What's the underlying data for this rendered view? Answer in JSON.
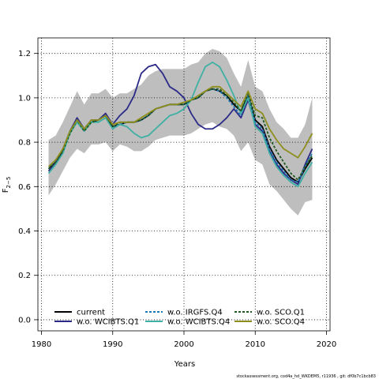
{
  "chart_data": {
    "type": "line",
    "xlabel": "Years",
    "ylabel": "F",
    "ylabel_sub": "2−5",
    "xlim": [
      1979.5,
      2020.5
    ],
    "ylim": [
      -0.05,
      1.27
    ],
    "xticks": [
      1980,
      1990,
      2000,
      2010,
      2020
    ],
    "yticks": [
      0.0,
      0.2,
      0.4,
      0.6,
      0.8,
      1.0,
      1.2
    ],
    "ytick_labels": [
      "0.0",
      "0.2",
      "0.4",
      "0.6",
      "0.8",
      "1.0",
      "1.2"
    ],
    "grid": true,
    "legend_position": "bottom-left",
    "confidence_band": {
      "color": "#bebebe",
      "x": [
        1981,
        1982,
        1983,
        1984,
        1985,
        1986,
        1987,
        1988,
        1989,
        1990,
        1991,
        1992,
        1993,
        1994,
        1995,
        1996,
        1997,
        1998,
        1999,
        2000,
        2001,
        2002,
        2003,
        2004,
        2005,
        2006,
        2007,
        2008,
        2009,
        2010,
        2011,
        2012,
        2013,
        2014,
        2015,
        2016,
        2017,
        2018
      ],
      "lower": [
        0.56,
        0.61,
        0.67,
        0.73,
        0.77,
        0.75,
        0.79,
        0.79,
        0.8,
        0.76,
        0.79,
        0.78,
        0.76,
        0.76,
        0.78,
        0.81,
        0.82,
        0.83,
        0.83,
        0.83,
        0.84,
        0.86,
        0.88,
        0.89,
        0.87,
        0.86,
        0.83,
        0.76,
        0.8,
        0.72,
        0.7,
        0.61,
        0.58,
        0.54,
        0.5,
        0.47,
        0.53,
        0.54
      ],
      "upper": [
        0.81,
        0.83,
        0.89,
        0.96,
        1.03,
        0.97,
        1.02,
        1.02,
        1.04,
        1.0,
        1.02,
        1.02,
        1.04,
        1.06,
        1.1,
        1.12,
        1.13,
        1.13,
        1.13,
        1.13,
        1.15,
        1.16,
        1.2,
        1.22,
        1.21,
        1.18,
        1.11,
        1.05,
        1.17,
        1.05,
        1.03,
        0.95,
        0.89,
        0.86,
        0.82,
        0.82,
        0.88,
        1.0
      ]
    },
    "x": [
      1981,
      1982,
      1983,
      1984,
      1985,
      1986,
      1987,
      1988,
      1989,
      1990,
      1991,
      1992,
      1993,
      1994,
      1995,
      1996,
      1997,
      1998,
      1999,
      2000,
      2001,
      2002,
      2003,
      2004,
      2005,
      2006,
      2007,
      2008,
      2009,
      2010,
      2011,
      2012,
      2013,
      2014,
      2015,
      2016,
      2017,
      2018
    ],
    "series": [
      {
        "name": "current",
        "color": "#000000",
        "dash": "solid",
        "values": [
          0.68,
          0.71,
          0.76,
          0.84,
          0.9,
          0.85,
          0.89,
          0.9,
          0.92,
          0.87,
          0.88,
          0.89,
          0.89,
          0.9,
          0.92,
          0.95,
          0.96,
          0.97,
          0.97,
          0.97,
          0.99,
          1.0,
          1.03,
          1.04,
          1.03,
          1.01,
          0.97,
          0.94,
          1.01,
          0.9,
          0.87,
          0.78,
          0.72,
          0.68,
          0.64,
          0.62,
          0.68,
          0.73
        ]
      },
      {
        "name": "w.o. WCIBTS.Q1",
        "color": "#2c2a87",
        "dash": "solid",
        "values": [
          0.67,
          0.71,
          0.77,
          0.85,
          0.91,
          0.86,
          0.9,
          0.9,
          0.93,
          0.88,
          0.92,
          0.95,
          1.01,
          1.11,
          1.14,
          1.15,
          1.11,
          1.05,
          1.03,
          1.0,
          0.93,
          0.88,
          0.86,
          0.86,
          0.88,
          0.91,
          0.95,
          0.91,
          0.99,
          0.88,
          0.85,
          0.76,
          0.7,
          0.66,
          0.63,
          0.61,
          0.7,
          0.77
        ]
      },
      {
        "name": "w.o. IRGFS.Q4",
        "color": "#1f78b4",
        "dash": "dashed",
        "values": [
          0.68,
          0.72,
          0.76,
          0.84,
          0.9,
          0.85,
          0.89,
          0.9,
          0.92,
          0.87,
          0.88,
          0.89,
          0.89,
          0.9,
          0.92,
          0.95,
          0.96,
          0.97,
          0.97,
          0.97,
          0.99,
          1.0,
          1.03,
          1.04,
          1.03,
          1.0,
          0.96,
          0.92,
          1.01,
          0.89,
          0.86,
          0.77,
          0.71,
          0.67,
          0.63,
          0.62,
          0.69,
          0.75
        ]
      },
      {
        "name": "w.o. WCIBTS.Q4",
        "color": "#3fb0a4",
        "dash": "solid",
        "values": [
          0.66,
          0.7,
          0.75,
          0.84,
          0.89,
          0.85,
          0.89,
          0.89,
          0.91,
          0.86,
          0.88,
          0.87,
          0.84,
          0.82,
          0.83,
          0.86,
          0.89,
          0.92,
          0.93,
          0.95,
          0.99,
          1.07,
          1.14,
          1.16,
          1.14,
          1.08,
          1.01,
          0.93,
          1.0,
          0.87,
          0.84,
          0.75,
          0.69,
          0.65,
          0.62,
          0.6,
          0.66,
          0.71
        ]
      },
      {
        "name": "w.o. SCO.Q1",
        "color": "#1e5a1e",
        "dash": "dashed",
        "values": [
          0.68,
          0.71,
          0.76,
          0.84,
          0.9,
          0.85,
          0.89,
          0.9,
          0.92,
          0.87,
          0.89,
          0.89,
          0.89,
          0.9,
          0.92,
          0.95,
          0.96,
          0.97,
          0.97,
          0.97,
          0.99,
          1.0,
          1.03,
          1.04,
          1.04,
          1.01,
          0.98,
          0.94,
          1.02,
          0.92,
          0.91,
          0.82,
          0.76,
          0.71,
          0.66,
          0.63,
          0.69,
          0.74
        ]
      },
      {
        "name": "w.o. SCO.Q4",
        "color": "#8f8f1f",
        "dash": "solid",
        "values": [
          0.69,
          0.72,
          0.77,
          0.85,
          0.9,
          0.86,
          0.9,
          0.9,
          0.92,
          0.88,
          0.89,
          0.89,
          0.89,
          0.91,
          0.93,
          0.95,
          0.96,
          0.97,
          0.97,
          0.98,
          0.99,
          1.01,
          1.03,
          1.05,
          1.05,
          1.02,
          0.99,
          0.96,
          1.03,
          0.95,
          0.93,
          0.86,
          0.81,
          0.77,
          0.75,
          0.73,
          0.78,
          0.84
        ]
      }
    ]
  },
  "footer": "stockassessment.org, cod4a_hd_WKDEM5, r11936 , git: df0b7c1bcb83"
}
